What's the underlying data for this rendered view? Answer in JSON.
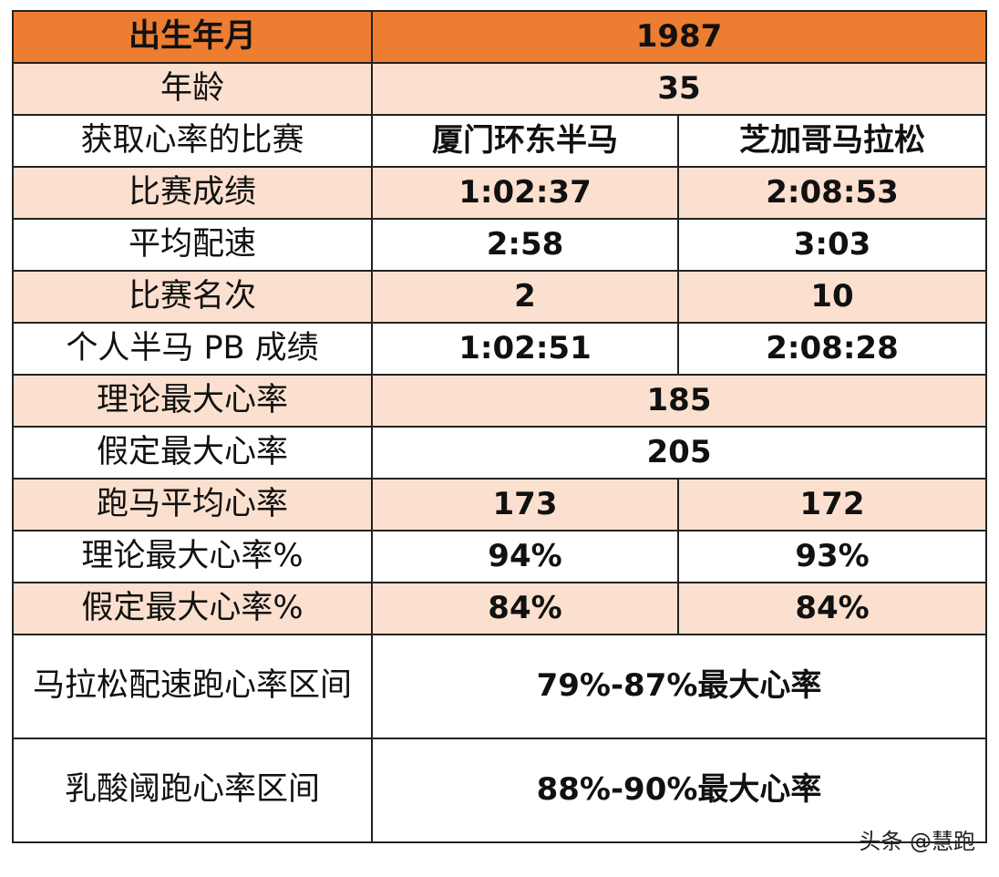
{
  "table": {
    "rows": [
      [
        "出生年月",
        "1987"
      ],
      [
        "年龄",
        "35"
      ],
      [
        "获取心率的比赛",
        "厦门环东半马",
        "芝加哥马拉松"
      ],
      [
        "比赛成绩",
        "1:02:37",
        "2:08:53"
      ],
      [
        "平均配速",
        "2:58",
        "3:03"
      ],
      [
        "比赛名次",
        "2",
        "10"
      ],
      [
        "个人半马 PB 成绩",
        "1:02:51",
        "2:08:28"
      ],
      [
        "理论最大心率",
        "185"
      ],
      [
        "假定最大心率",
        "205"
      ],
      [
        "跑马平均心率",
        "173",
        "172"
      ],
      [
        "理论最大心率%",
        "94%",
        "93%"
      ],
      [
        "假定最大心率%",
        "84%",
        "84%"
      ],
      [
        "马拉松配速跑心率区间",
        "79%-87%最大心率"
      ],
      [
        "乳酸阈跑心率区间",
        "88%-90%最大心率"
      ]
    ]
  },
  "watermark": "头条 @慧跑"
}
